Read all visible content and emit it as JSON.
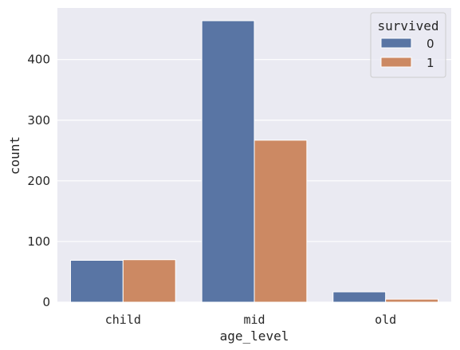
{
  "chart_data": {
    "type": "bar",
    "xlabel": "age_level",
    "ylabel": "count",
    "categories": [
      "child",
      "mid",
      "old"
    ],
    "series": [
      {
        "name": "0",
        "values": [
          69,
          464,
          17
        ],
        "color": "#5975a4"
      },
      {
        "name": "1",
        "values": [
          70,
          267,
          5
        ],
        "color": "#cc8963"
      }
    ],
    "ylim": [
      0,
      485
    ],
    "yticks": [
      0,
      100,
      200,
      300,
      400
    ],
    "grid": true,
    "legend": {
      "title": "survived",
      "placement": "top-right"
    },
    "background_color": "#eaeaf2",
    "grid_color": "#ffffff"
  }
}
